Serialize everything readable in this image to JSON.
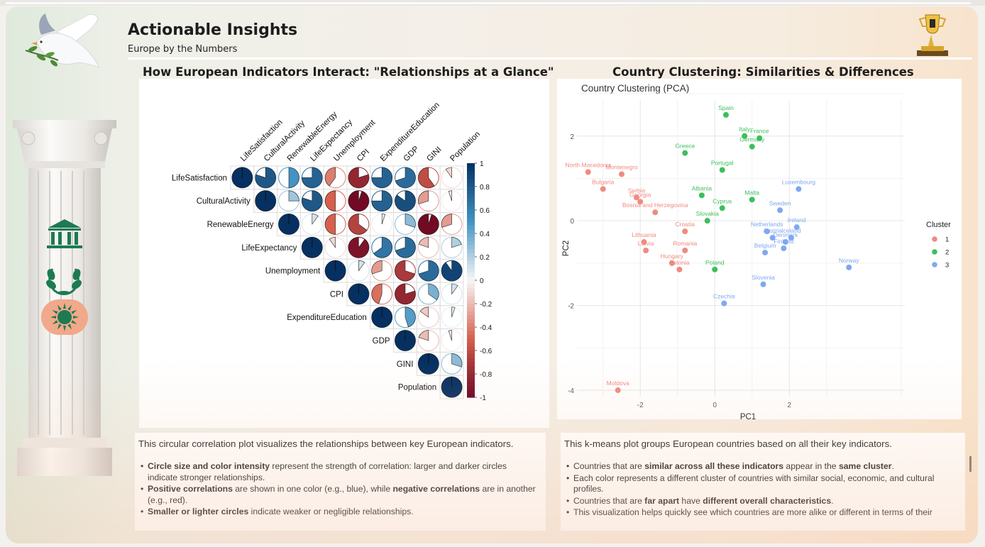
{
  "header": {
    "title": "Actionable Insights",
    "subtitle": "Europe by the Numbers"
  },
  "sidebar": {
    "icons": [
      "institution-icon",
      "laurel-icon",
      "sun-icon"
    ],
    "decor": [
      "dove-icon",
      "column-icon",
      "trophy-icon"
    ]
  },
  "sections": {
    "left_title": "How European Indicators Interact: \"Relationships at a Glance\"",
    "right_title": "Country Clustering: Similarities & Differences"
  },
  "left_text": {
    "lead": "This circular correlation plot visualizes the relationships between key European indicators.",
    "bullets": [
      {
        "b1": "Circle size and color intensity",
        "t1": " represent the strength of correlation: larger and darker circles indicate stronger relationships."
      },
      {
        "b1": "Positive correlations",
        "t1": " are shown in one color (e.g., blue), while ",
        "b2": "negative correlations",
        "t2": " are in another (e.g., red)."
      },
      {
        "b1": "Smaller or lighter circles",
        "t1": " indicate weaker or negligible relationships."
      }
    ]
  },
  "right_text": {
    "lead": "This k-means plot groups European countries based on all their key indicators.",
    "bullets": [
      {
        "t0": "Countries that are ",
        "b1": "similar across all these indicators",
        "t1": " appear in the ",
        "b2": "same cluster",
        "t2": "."
      },
      {
        "t0": "Each color represents a different cluster of countries with similar social, economic, and cultural profiles."
      },
      {
        "t0": "Countries that are ",
        "b1": "far apart",
        "t1": " have ",
        "b2": "different overall characteristics",
        "t2": "."
      },
      {
        "t0": "This visualization helps quickly see which countries are more alike or different in terms of their"
      }
    ]
  },
  "colors": {
    "neg_dark": "#67001f",
    "neg_mid": "#d6604d",
    "neutral": "#f7f7f7",
    "pos_mid": "#4393c3",
    "pos_dark": "#053061",
    "cluster1": "#f08a80",
    "cluster2": "#3cbf5c",
    "cluster3": "#7fa8f0"
  },
  "chart_data": [
    {
      "type": "heatmap",
      "title": "",
      "variables": [
        "LifeSatisfaction",
        "CulturalActivity",
        "RenewableEnergy",
        "LifeExpectancy",
        "Unemployment",
        "CPI",
        "ExpenditureEducation",
        "GDP",
        "GINI",
        "Population"
      ],
      "matrix": [
        [
          1,
          0.8,
          0.5,
          0.75,
          -0.4,
          -0.8,
          0.75,
          0.7,
          -0.6,
          -0.1
        ],
        [
          0.8,
          1,
          0.25,
          0.8,
          -0.5,
          -0.95,
          0.75,
          0.85,
          -0.3,
          -0.05
        ],
        [
          0.5,
          0.25,
          1,
          0.1,
          -0.5,
          -0.65,
          0.05,
          0.3,
          -0.95,
          -0.3
        ],
        [
          0.75,
          0.8,
          0.1,
          1,
          -0.1,
          -0.9,
          0.65,
          0.7,
          -0.2,
          0.2
        ],
        [
          -0.4,
          -0.5,
          -0.5,
          -0.1,
          1,
          0.1,
          -0.3,
          -0.7,
          0.7,
          0.9
        ],
        [
          -0.8,
          -0.95,
          -0.65,
          -0.9,
          0.1,
          1,
          -0.45,
          -0.8,
          0.35,
          0.1
        ],
        [
          0.75,
          0.75,
          0.05,
          0.65,
          -0.3,
          -0.45,
          1,
          0.45,
          -0.15,
          0.05
        ],
        [
          0.7,
          0.85,
          0.3,
          0.7,
          -0.7,
          -0.8,
          0.45,
          1,
          -0.2,
          -0.05
        ],
        [
          -0.6,
          -0.3,
          -0.95,
          -0.2,
          0.7,
          0.35,
          -0.15,
          -0.2,
          1,
          0.3
        ],
        [
          -0.1,
          -0.05,
          -0.3,
          0.2,
          0.9,
          0.1,
          0.05,
          -0.05,
          0.3,
          1
        ]
      ],
      "colorbar_ticks": [
        "1",
        "0.8",
        "0.6",
        "0.4",
        "0.2",
        "0",
        "-0.2",
        "-0.4",
        "-0.6",
        "-0.8",
        "-1"
      ],
      "legend_position": "right"
    },
    {
      "type": "scatter",
      "title": "Country Clustering (PCA)",
      "xlabel": "PC1",
      "ylabel": "PC2",
      "xlim": [
        -3.7,
        5.1
      ],
      "ylim": [
        -4.15,
        2.85
      ],
      "xticks": [
        -2,
        0,
        2
      ],
      "yticks": [
        2,
        0,
        -2,
        -4
      ],
      "grid": true,
      "legend_title": "Cluster",
      "legend_labels": [
        "1",
        "2",
        "3"
      ],
      "points": [
        {
          "label": "Spain",
          "x": 0.3,
          "y": 2.5,
          "cluster": 2
        },
        {
          "label": "Italy",
          "x": 0.8,
          "y": 2.0,
          "cluster": 2
        },
        {
          "label": "France",
          "x": 1.2,
          "y": 1.95,
          "cluster": 2
        },
        {
          "label": "Germany",
          "x": 1.0,
          "y": 1.75,
          "cluster": 2
        },
        {
          "label": "Greece",
          "x": -0.8,
          "y": 1.6,
          "cluster": 2
        },
        {
          "label": "Portugal",
          "x": 0.2,
          "y": 1.2,
          "cluster": 2
        },
        {
          "label": "Albania",
          "x": -0.35,
          "y": 0.6,
          "cluster": 2
        },
        {
          "label": "Malta",
          "x": 1.0,
          "y": 0.5,
          "cluster": 2
        },
        {
          "label": "Cyprus",
          "x": 0.2,
          "y": 0.3,
          "cluster": 2
        },
        {
          "label": "Slovakia",
          "x": -0.2,
          "y": 0.0,
          "cluster": 2
        },
        {
          "label": "Poland",
          "x": 0.0,
          "y": -1.15,
          "cluster": 2
        },
        {
          "label": "North Macedonia",
          "x": -3.4,
          "y": 1.15,
          "cluster": 1
        },
        {
          "label": "Montenegro",
          "x": -2.5,
          "y": 1.1,
          "cluster": 1
        },
        {
          "label": "Bulgaria",
          "x": -3.0,
          "y": 0.75,
          "cluster": 1
        },
        {
          "label": "Serbia",
          "x": -2.1,
          "y": 0.55,
          "cluster": 1
        },
        {
          "label": "Georgia",
          "x": -2.0,
          "y": 0.45,
          "cluster": 1
        },
        {
          "label": "Bosnia and Herzegovina",
          "x": -1.6,
          "y": 0.2,
          "cluster": 1
        },
        {
          "label": "Croatia",
          "x": -0.8,
          "y": -0.25,
          "cluster": 1
        },
        {
          "label": "Lithuania",
          "x": -1.9,
          "y": -0.5,
          "cluster": 1
        },
        {
          "label": "Latvia",
          "x": -1.85,
          "y": -0.7,
          "cluster": 1
        },
        {
          "label": "Romania",
          "x": -0.8,
          "y": -0.7,
          "cluster": 1
        },
        {
          "label": "Hungary",
          "x": -1.15,
          "y": -1.0,
          "cluster": 1
        },
        {
          "label": "Estonia",
          "x": -0.95,
          "y": -1.15,
          "cluster": 1
        },
        {
          "label": "Moldova",
          "x": -2.6,
          "y": -4.0,
          "cluster": 1
        },
        {
          "label": "Luxembourg",
          "x": 2.25,
          "y": 0.75,
          "cluster": 3
        },
        {
          "label": "Sweden",
          "x": 1.75,
          "y": 0.25,
          "cluster": 3
        },
        {
          "label": "Ireland",
          "x": 2.2,
          "y": -0.15,
          "cluster": 3
        },
        {
          "label": "Netherlands",
          "x": 1.4,
          "y": -0.25,
          "cluster": 3
        },
        {
          "label": "Austria",
          "x": 1.55,
          "y": -0.4,
          "cluster": 3
        },
        {
          "label": "Iceland",
          "x": 2.05,
          "y": -0.4,
          "cluster": 3
        },
        {
          "label": "Denmark",
          "x": 1.9,
          "y": -0.5,
          "cluster": 3
        },
        {
          "label": "Finland",
          "x": 1.85,
          "y": -0.65,
          "cluster": 3
        },
        {
          "label": "Belgium",
          "x": 1.35,
          "y": -0.75,
          "cluster": 3
        },
        {
          "label": "Norway",
          "x": 3.6,
          "y": -1.1,
          "cluster": 3
        },
        {
          "label": "Slovenia",
          "x": 1.3,
          "y": -1.5,
          "cluster": 3
        },
        {
          "label": "Czechia",
          "x": 0.25,
          "y": -1.95,
          "cluster": 3
        }
      ]
    }
  ]
}
